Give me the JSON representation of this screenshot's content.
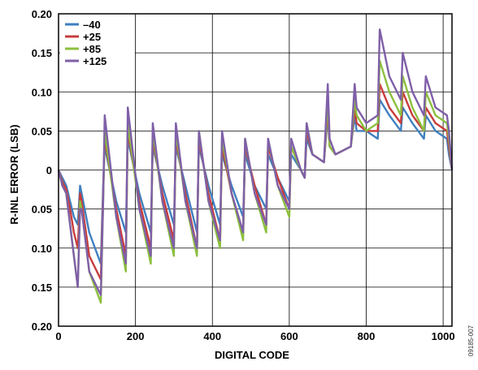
{
  "chart_data": {
    "type": "line",
    "title": "",
    "xlabel": "DIGITAL CODE",
    "ylabel": "R-INL ERROR (LSB)",
    "xlim": [
      0,
      1023
    ],
    "ylim": [
      -0.2,
      0.2
    ],
    "x_ticks": [
      0,
      200,
      400,
      600,
      800,
      1000
    ],
    "x_tick_labels": [
      "0",
      "200",
      "400",
      "600",
      "800",
      "1000"
    ],
    "y_ticks": [
      0.2,
      0.15,
      0.1,
      0.05,
      0,
      -0.05,
      -0.1,
      -0.15,
      -0.2
    ],
    "y_tick_labels": [
      "0.20",
      "0.15",
      "0.10",
      "0.05",
      "0",
      "0.05",
      "0.10",
      "0.15",
      "0.20"
    ],
    "grid": true,
    "legend_position": "top-left",
    "figure_id": "09185-007",
    "x": [
      0,
      10,
      20,
      30,
      40,
      50,
      56,
      60,
      80,
      110,
      116,
      120,
      150,
      175,
      180,
      210,
      240,
      245,
      270,
      300,
      305,
      330,
      360,
      365,
      390,
      420,
      425,
      450,
      480,
      485,
      510,
      540,
      545,
      570,
      600,
      605,
      630,
      640,
      645,
      660,
      690,
      700,
      705,
      720,
      760,
      770,
      775,
      800,
      830,
      835,
      860,
      890,
      895,
      920,
      950,
      955,
      980,
      1010,
      1015,
      1023
    ],
    "series": [
      {
        "name": "–40",
        "color": "#3f7fbf",
        "values": [
          0,
          -0.01,
          -0.02,
          -0.04,
          -0.06,
          -0.07,
          -0.02,
          -0.03,
          -0.08,
          -0.12,
          -0.02,
          0.03,
          -0.04,
          -0.08,
          0.04,
          -0.03,
          -0.08,
          0.03,
          -0.02,
          -0.07,
          0.03,
          -0.02,
          -0.08,
          0.03,
          -0.02,
          -0.07,
          0.02,
          -0.02,
          -0.06,
          0.02,
          -0.02,
          -0.05,
          0.02,
          -0.01,
          -0.04,
          0.02,
          0.0,
          -0.01,
          0.04,
          0.02,
          0.01,
          0.07,
          0.03,
          0.02,
          0.03,
          0.07,
          0.05,
          0.05,
          0.04,
          0.09,
          0.07,
          0.05,
          0.08,
          0.06,
          0.04,
          0.07,
          0.05,
          0.04,
          0.02,
          0.0
        ]
      },
      {
        "name": "+25",
        "color": "#c83c3c",
        "values": [
          0,
          -0.015,
          -0.025,
          -0.05,
          -0.08,
          -0.1,
          -0.03,
          -0.04,
          -0.11,
          -0.14,
          -0.03,
          0.04,
          -0.05,
          -0.11,
          0.05,
          -0.04,
          -0.1,
          0.04,
          -0.03,
          -0.09,
          0.04,
          -0.03,
          -0.1,
          0.04,
          -0.03,
          -0.09,
          0.03,
          -0.03,
          -0.08,
          0.03,
          -0.02,
          -0.07,
          0.03,
          -0.01,
          -0.05,
          0.03,
          0.0,
          -0.01,
          0.05,
          0.02,
          0.01,
          0.08,
          0.03,
          0.02,
          0.03,
          0.08,
          0.06,
          0.05,
          0.05,
          0.11,
          0.08,
          0.06,
          0.1,
          0.07,
          0.05,
          0.08,
          0.06,
          0.05,
          0.03,
          0.0
        ]
      },
      {
        "name": "+85",
        "color": "#8cbf3f",
        "values": [
          0,
          -0.02,
          -0.03,
          -0.07,
          -0.11,
          -0.15,
          -0.04,
          -0.05,
          -0.13,
          -0.17,
          -0.04,
          0.05,
          -0.06,
          -0.13,
          0.06,
          -0.05,
          -0.12,
          0.05,
          -0.04,
          -0.11,
          0.05,
          -0.04,
          -0.11,
          0.05,
          -0.04,
          -0.1,
          0.04,
          -0.03,
          -0.09,
          0.04,
          -0.03,
          -0.08,
          0.04,
          -0.02,
          -0.06,
          0.03,
          0.0,
          -0.01,
          0.06,
          0.02,
          0.01,
          0.09,
          0.03,
          0.02,
          0.03,
          0.09,
          0.07,
          0.05,
          0.06,
          0.14,
          0.1,
          0.07,
          0.12,
          0.08,
          0.05,
          0.1,
          0.07,
          0.06,
          0.04,
          0.0
        ]
      },
      {
        "name": "+125",
        "color": "#7f5fa8",
        "values": [
          0,
          -0.02,
          -0.03,
          -0.07,
          -0.11,
          -0.15,
          -0.05,
          -0.05,
          -0.13,
          -0.16,
          -0.04,
          0.07,
          -0.06,
          -0.12,
          0.08,
          -0.05,
          -0.11,
          0.06,
          -0.04,
          -0.1,
          0.06,
          -0.04,
          -0.1,
          0.05,
          -0.04,
          -0.09,
          0.05,
          -0.03,
          -0.08,
          0.04,
          -0.03,
          -0.07,
          0.04,
          -0.02,
          -0.05,
          0.04,
          0.0,
          -0.01,
          0.06,
          0.02,
          0.01,
          0.11,
          0.04,
          0.02,
          0.03,
          0.11,
          0.08,
          0.06,
          0.07,
          0.18,
          0.12,
          0.09,
          0.15,
          0.1,
          0.07,
          0.12,
          0.08,
          0.07,
          0.05,
          0.0
        ]
      }
    ]
  }
}
